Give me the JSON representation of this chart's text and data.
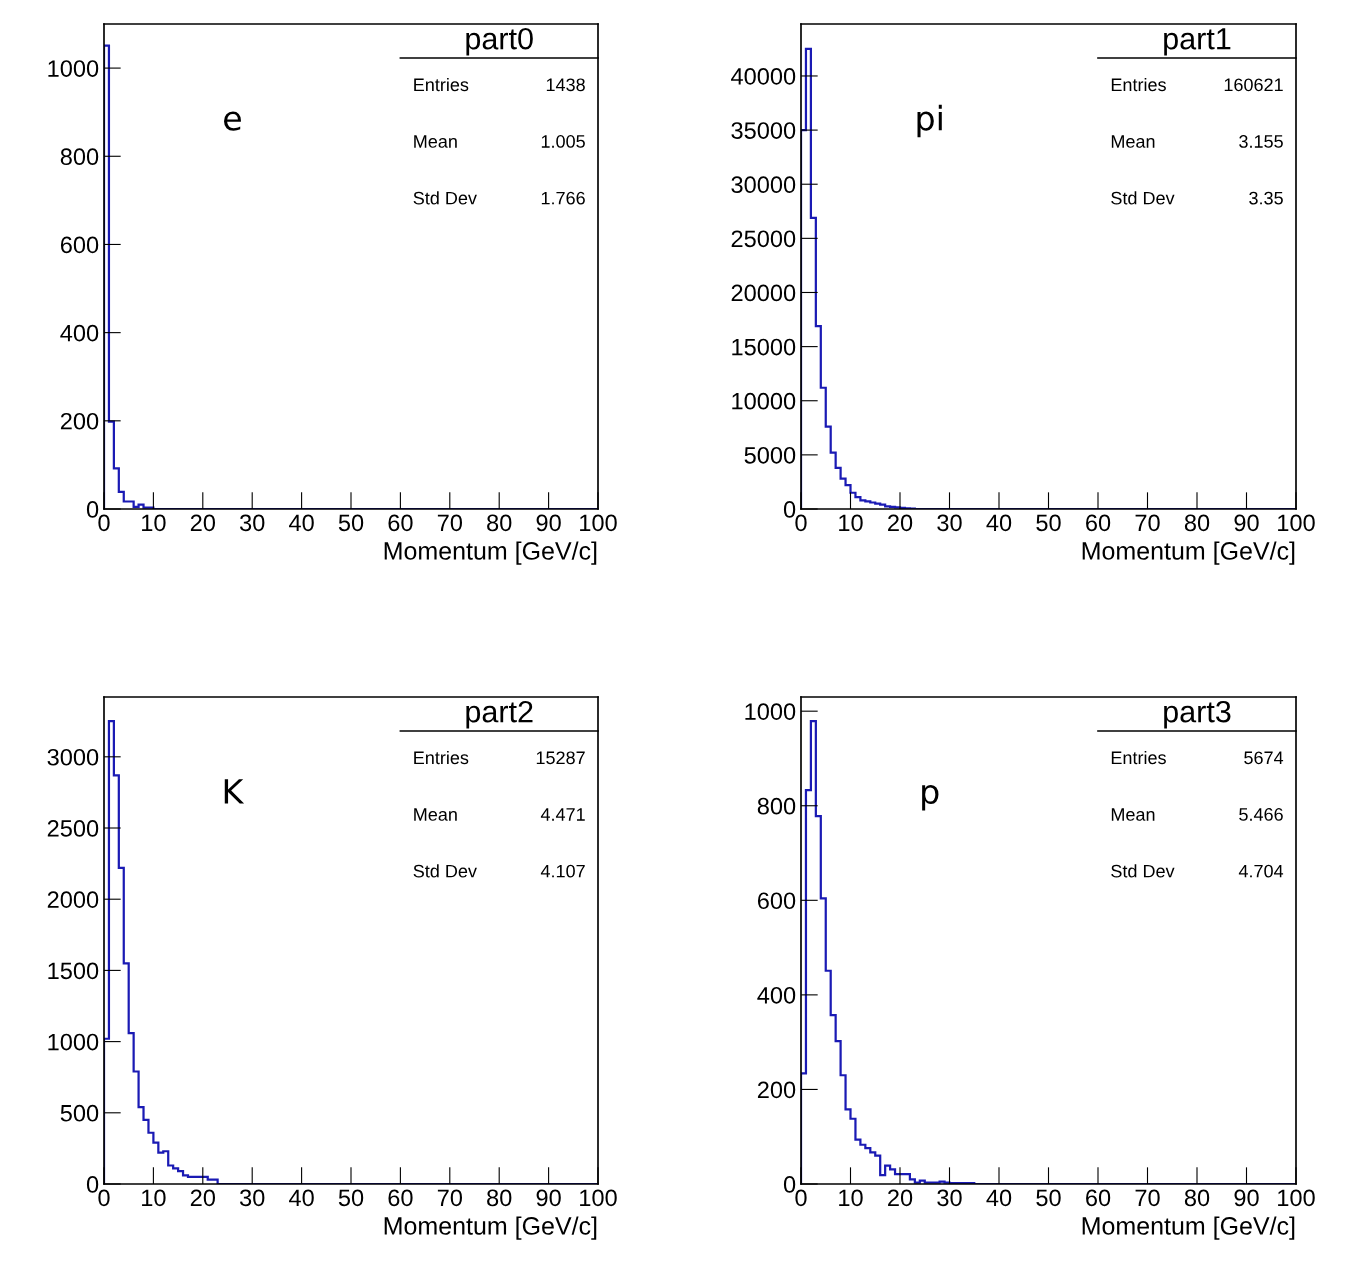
{
  "chart_data": [
    {
      "type": "histogram",
      "title": "part0",
      "xlabel": "Momentum [GeV/c]",
      "color": "#1a1ab4",
      "bins": [
        0,
        1,
        2,
        3,
        4,
        5,
        6,
        7,
        8,
        9,
        10,
        11,
        12,
        13,
        14,
        15,
        16,
        17,
        18,
        19,
        20,
        21,
        22,
        23,
        24,
        25,
        26,
        27,
        28,
        29,
        30,
        31,
        32,
        33,
        34,
        35,
        36,
        37,
        38,
        39,
        40,
        41,
        42,
        43,
        44,
        45,
        46,
        47,
        48,
        49,
        50,
        51,
        52,
        53,
        54,
        55,
        56,
        57,
        58,
        59,
        60,
        61,
        62,
        63,
        64,
        65,
        66,
        67,
        68,
        69,
        70,
        71,
        72,
        73,
        74,
        75,
        76,
        77,
        78,
        79,
        80,
        81,
        82,
        83,
        84,
        85,
        86,
        87,
        88,
        89,
        90,
        91,
        92,
        93,
        94,
        95,
        96,
        97,
        98,
        99,
        100
      ],
      "values": [
        1051,
        198,
        92,
        39,
        17,
        17,
        5,
        10,
        3,
        3,
        0,
        0,
        0,
        0,
        0,
        0,
        0,
        0,
        0,
        0,
        0,
        0,
        0,
        0,
        0,
        0,
        0,
        0,
        0,
        0,
        0,
        0,
        0,
        0,
        0,
        0,
        0,
        0,
        0,
        0,
        0,
        0,
        0,
        0,
        0,
        0,
        0,
        0,
        0,
        0,
        0,
        0,
        0,
        0,
        0,
        0,
        0,
        0,
        0,
        0,
        0,
        0,
        0,
        0,
        0,
        0,
        0,
        0,
        0,
        0,
        0,
        0,
        0,
        0,
        0,
        0,
        0,
        0,
        0,
        0,
        0,
        0,
        0,
        0,
        0,
        0,
        0,
        0,
        0,
        0,
        0,
        0,
        0,
        0,
        0,
        0,
        0,
        0,
        0,
        0
      ],
      "xlim": [
        0,
        100
      ],
      "xticks": [
        0,
        10,
        20,
        30,
        40,
        50,
        60,
        70,
        80,
        90,
        100
      ],
      "ylim": [
        0,
        1100
      ],
      "yticks": [
        0,
        200,
        400,
        600,
        800,
        1000
      ],
      "grid": false,
      "annotations": [
        "e",
        "Entries",
        "1438",
        "Mean",
        "1.005",
        "Std Dev",
        "1.766"
      ]
    },
    {
      "type": "histogram",
      "title": "part1",
      "xlabel": "Momentum [GeV/c]",
      "color": "#1a1ab4",
      "bins": [
        0,
        1,
        2,
        3,
        4,
        5,
        6,
        7,
        8,
        9,
        10,
        11,
        12,
        13,
        14,
        15,
        16,
        17,
        18,
        19,
        20,
        21,
        22,
        23,
        24,
        25,
        26,
        27,
        28,
        29,
        30,
        31,
        32,
        33,
        34,
        35,
        36,
        37,
        38,
        39,
        40,
        41,
        42,
        43,
        44,
        45,
        46,
        47,
        48,
        49,
        50,
        51,
        52,
        53,
        54,
        55,
        56,
        57,
        58,
        59,
        60,
        61,
        62,
        63,
        64,
        65,
        66,
        67,
        68,
        69,
        70,
        71,
        72,
        73,
        74,
        75,
        76,
        77,
        78,
        79,
        80,
        81,
        82,
        83,
        84,
        85,
        86,
        87,
        88,
        89,
        90,
        91,
        92,
        93,
        94,
        95,
        96,
        97,
        98,
        99,
        100
      ],
      "values": [
        35000,
        42500,
        26900,
        16900,
        11200,
        7600,
        5200,
        3800,
        2800,
        2200,
        1500,
        1100,
        800,
        700,
        600,
        500,
        400,
        250,
        200,
        150,
        100,
        60,
        40,
        0,
        0,
        0,
        0,
        0,
        0,
        0,
        0,
        0,
        0,
        0,
        0,
        0,
        0,
        0,
        0,
        0,
        0,
        0,
        0,
        0,
        0,
        0,
        0,
        0,
        0,
        0,
        0,
        0,
        0,
        0,
        0,
        0,
        0,
        0,
        0,
        0,
        0,
        0,
        0,
        0,
        0,
        0,
        0,
        0,
        0,
        0,
        0,
        0,
        0,
        0,
        0,
        0,
        0,
        0,
        0,
        0,
        0,
        0,
        0,
        0,
        0,
        0,
        0,
        0,
        0,
        0,
        0,
        0,
        0,
        0,
        0,
        0,
        0,
        0,
        0,
        0
      ],
      "xlim": [
        0,
        100
      ],
      "xticks": [
        0,
        10,
        20,
        30,
        40,
        50,
        60,
        70,
        80,
        90,
        100
      ],
      "ylim": [
        0,
        44800
      ],
      "yticks": [
        0,
        5000,
        10000,
        15000,
        20000,
        25000,
        30000,
        35000,
        40000
      ],
      "grid": false,
      "annotations": [
        "pi",
        "Entries",
        "160621",
        "Mean",
        "3.155",
        "Std Dev",
        "3.35"
      ]
    },
    {
      "type": "histogram",
      "title": "part2",
      "xlabel": "Momentum [GeV/c]",
      "color": "#1a1ab4",
      "bins": [
        0,
        1,
        2,
        3,
        4,
        5,
        6,
        7,
        8,
        9,
        10,
        11,
        12,
        13,
        14,
        15,
        16,
        17,
        18,
        19,
        20,
        21,
        22,
        23,
        24,
        25,
        26,
        27,
        28,
        29,
        30,
        31,
        32,
        33,
        34,
        35,
        36,
        37,
        38,
        39,
        40,
        41,
        42,
        43,
        44,
        45,
        46,
        47,
        48,
        49,
        50,
        51,
        52,
        53,
        54,
        55,
        56,
        57,
        58,
        59,
        60,
        61,
        62,
        63,
        64,
        65,
        66,
        67,
        68,
        69,
        70,
        71,
        72,
        73,
        74,
        75,
        76,
        77,
        78,
        79,
        80,
        81,
        82,
        83,
        84,
        85,
        86,
        87,
        88,
        89,
        90,
        91,
        92,
        93,
        94,
        95,
        96,
        97,
        98,
        99,
        100
      ],
      "values": [
        1020,
        3250,
        2870,
        2220,
        1550,
        1060,
        790,
        540,
        450,
        360,
        290,
        220,
        230,
        130,
        110,
        90,
        60,
        50,
        50,
        50,
        50,
        30,
        30,
        0,
        0,
        0,
        0,
        0,
        0,
        0,
        0,
        0,
        0,
        0,
        0,
        0,
        0,
        0,
        0,
        0,
        0,
        0,
        0,
        0,
        0,
        0,
        0,
        0,
        0,
        0,
        0,
        0,
        0,
        0,
        0,
        0,
        0,
        0,
        0,
        0,
        0,
        0,
        0,
        0,
        0,
        0,
        0,
        0,
        0,
        0,
        0,
        0,
        0,
        0,
        0,
        0,
        0,
        0,
        0,
        0,
        0,
        0,
        0,
        0,
        0,
        0,
        0,
        0,
        0,
        0,
        0,
        0,
        0,
        0,
        0,
        0,
        0,
        0,
        0,
        0
      ],
      "xlim": [
        0,
        100
      ],
      "xticks": [
        0,
        10,
        20,
        30,
        40,
        50,
        60,
        70,
        80,
        90,
        100
      ],
      "ylim": [
        0,
        3420
      ],
      "yticks": [
        0,
        500,
        1000,
        1500,
        2000,
        2500,
        3000
      ],
      "grid": false,
      "annotations": [
        "K",
        "Entries",
        "15287",
        "Mean",
        "4.471",
        "Std Dev",
        "4.107"
      ]
    },
    {
      "type": "histogram",
      "title": "part3",
      "xlabel": "Momentum [GeV/c]",
      "color": "#1a1ab4",
      "bins": [
        0,
        1,
        2,
        3,
        4,
        5,
        6,
        7,
        8,
        9,
        10,
        11,
        12,
        13,
        14,
        15,
        16,
        17,
        18,
        19,
        20,
        21,
        22,
        23,
        24,
        25,
        26,
        27,
        28,
        29,
        30,
        31,
        32,
        33,
        34,
        35,
        36,
        37,
        38,
        39,
        40,
        41,
        42,
        43,
        44,
        45,
        46,
        47,
        48,
        49,
        50,
        51,
        52,
        53,
        54,
        55,
        56,
        57,
        58,
        59,
        60,
        61,
        62,
        63,
        64,
        65,
        66,
        67,
        68,
        69,
        70,
        71,
        72,
        73,
        74,
        75,
        76,
        77,
        78,
        79,
        80,
        81,
        82,
        83,
        84,
        85,
        86,
        87,
        88,
        89,
        90,
        91,
        92,
        93,
        94,
        95,
        96,
        97,
        98,
        99,
        100
      ],
      "values": [
        234,
        833,
        979,
        778,
        604,
        451,
        357,
        302,
        230,
        158,
        138,
        94,
        83,
        76,
        67,
        60,
        19,
        39,
        31,
        21,
        21,
        21,
        10,
        3,
        7,
        3,
        3,
        3,
        5,
        3,
        2,
        2,
        2,
        2,
        2,
        0,
        0,
        0,
        0,
        0,
        0,
        0,
        0,
        0,
        0,
        0,
        0,
        0,
        0,
        0,
        0,
        0,
        0,
        0,
        0,
        0,
        0,
        0,
        0,
        0,
        0,
        0,
        0,
        0,
        0,
        0,
        0,
        0,
        0,
        0,
        0,
        0,
        0,
        0,
        0,
        0,
        0,
        0,
        0,
        0,
        0,
        0,
        0,
        0,
        0,
        0,
        0,
        0,
        0,
        0,
        0,
        0,
        0,
        0,
        0,
        0,
        0,
        0,
        0,
        0
      ],
      "xlim": [
        0,
        100
      ],
      "xticks": [
        0,
        10,
        20,
        30,
        40,
        50,
        60,
        70,
        80,
        90,
        100
      ],
      "ylim": [
        0,
        1030
      ],
      "yticks": [
        0,
        200,
        400,
        600,
        800,
        1000
      ],
      "grid": false,
      "annotations": [
        "p",
        "Entries",
        "5674",
        "Mean",
        "5.466",
        "Std Dev",
        "4.704"
      ]
    }
  ]
}
